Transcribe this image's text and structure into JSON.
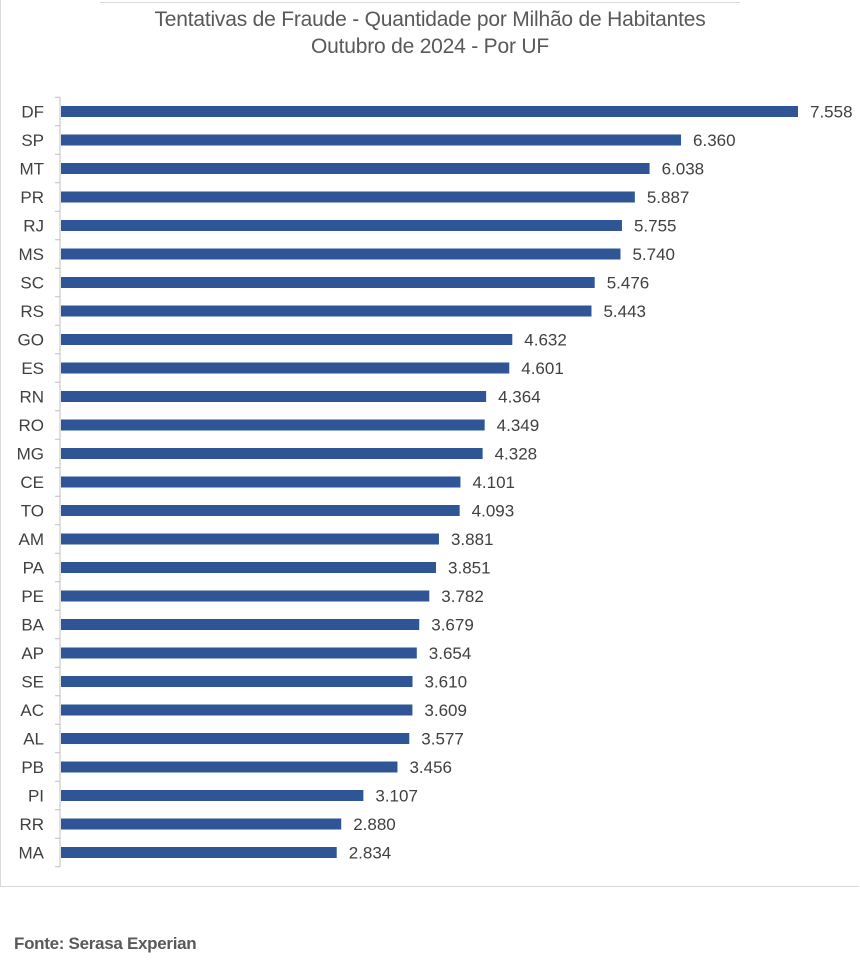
{
  "chart_data": {
    "type": "bar",
    "orientation": "horizontal",
    "title": "Tentativas de Fraude - Quantidade por Milhão de Habitantes",
    "subtitle": "Outubro de 2024 - Por UF",
    "categories": [
      "DF",
      "SP",
      "MT",
      "PR",
      "RJ",
      "MS",
      "SC",
      "RS",
      "GO",
      "ES",
      "RN",
      "RO",
      "MG",
      "CE",
      "TO",
      "AM",
      "PA",
      "PE",
      "BA",
      "AP",
      "SE",
      "AC",
      "AL",
      "PB",
      "PI",
      "RR",
      "MA"
    ],
    "values": [
      7558,
      6360,
      6038,
      5887,
      5755,
      5740,
      5476,
      5443,
      4632,
      4601,
      4364,
      4349,
      4328,
      4101,
      4093,
      3881,
      3851,
      3782,
      3679,
      3654,
      3610,
      3609,
      3577,
      3456,
      3107,
      2880,
      2834
    ],
    "value_labels": [
      "7.558",
      "6.360",
      "6.038",
      "5.887",
      "5.755",
      "5.740",
      "5.476",
      "5.443",
      "4.632",
      "4.601",
      "4.364",
      "4.349",
      "4.328",
      "4.101",
      "4.093",
      "3.881",
      "3.851",
      "3.782",
      "3.679",
      "3.654",
      "3.610",
      "3.609",
      "3.577",
      "3.456",
      "3.107",
      "2.880",
      "2.834"
    ],
    "xlim": [
      0,
      7558
    ],
    "bar_color": "#2f5597",
    "grid": false,
    "legend": "none"
  },
  "source": "Fonte: Serasa Experian"
}
